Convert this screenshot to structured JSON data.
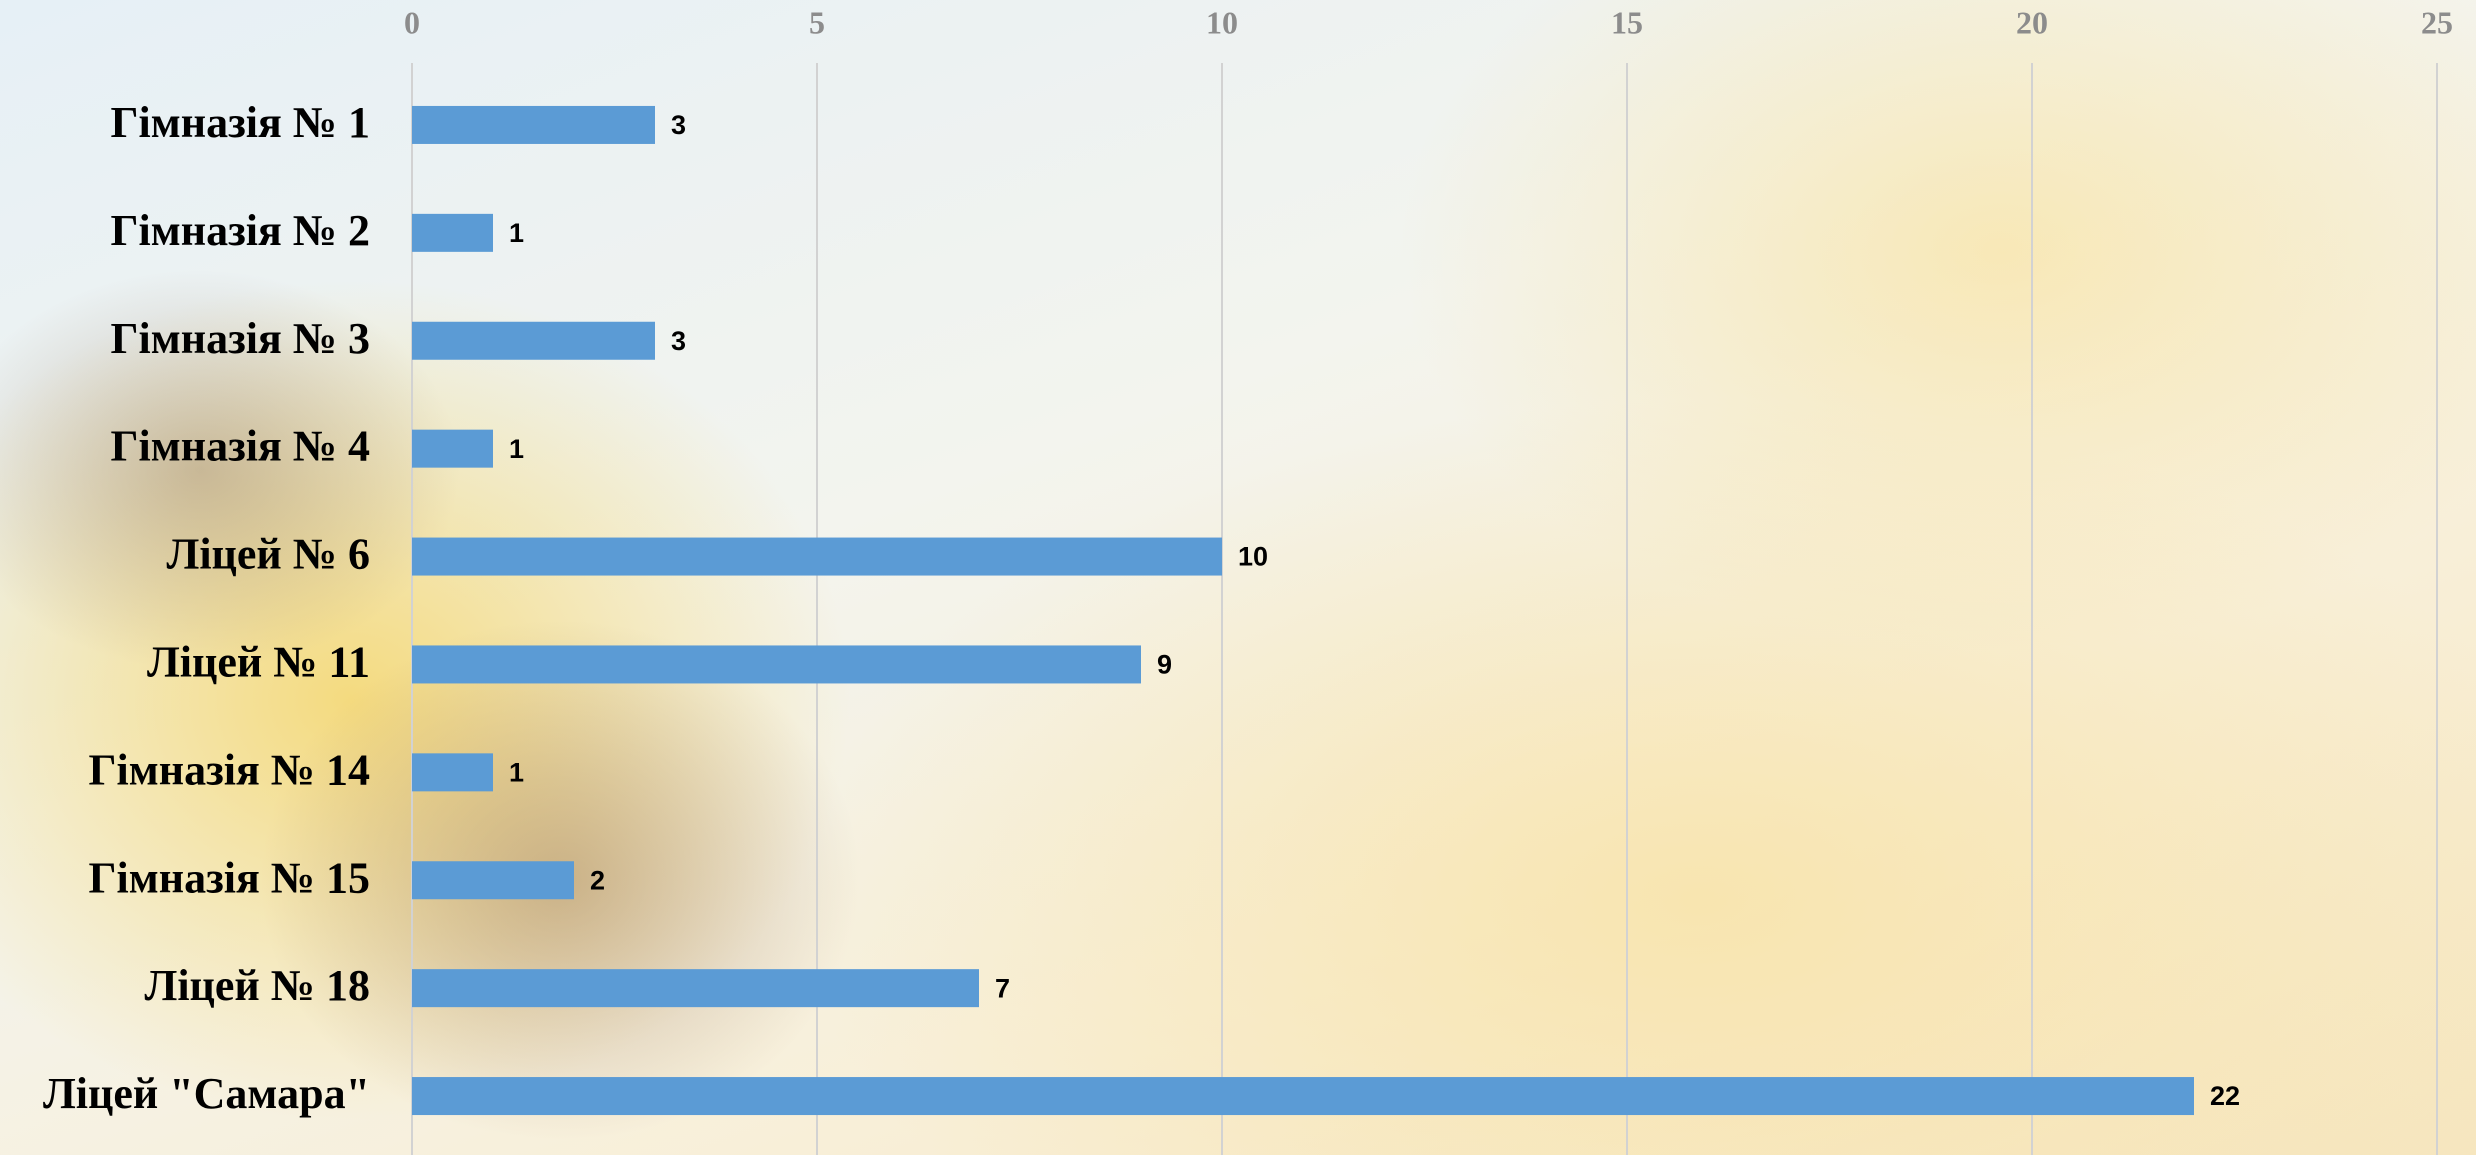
{
  "chart_data": {
    "type": "bar",
    "orientation": "horizontal",
    "categories": [
      "Гімназія № 1",
      "Гімназія № 2",
      "Гімназія № 3",
      "Гімназія № 4",
      "Ліцей № 6",
      "Ліцей № 11",
      "Гімназія № 14",
      "Гімназія № 15",
      "Ліцей № 18",
      "Ліцей \"Самара\""
    ],
    "values": [
      3,
      1,
      3,
      1,
      10,
      9,
      1,
      2,
      7,
      22
    ],
    "color": "#5b9bd5",
    "xlim": [
      0,
      25
    ],
    "xticks": [
      0,
      5,
      10,
      15,
      20,
      25
    ],
    "grid": true
  }
}
